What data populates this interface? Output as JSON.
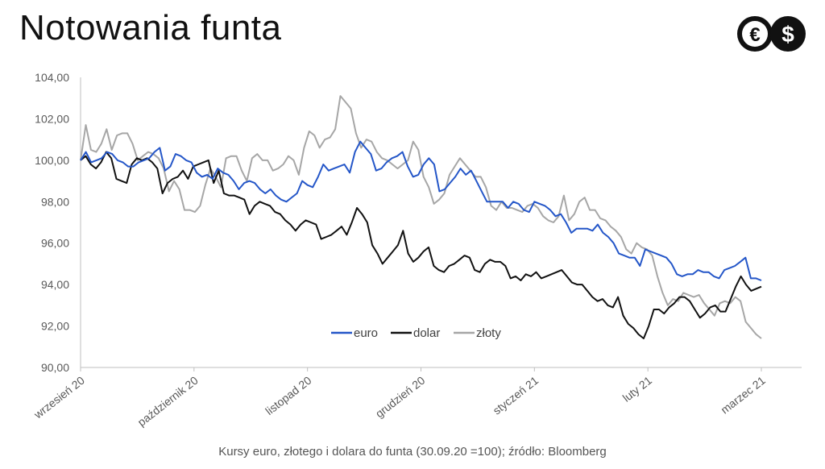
{
  "header": {
    "title": "Notowania funta"
  },
  "logo": {
    "label_left": "€",
    "label_right": "$"
  },
  "footnote": "Kursy euro, złotego i dolara do funta (30.09.20 =100); źródło: Bloomberg",
  "colors": {
    "euro": "#2456c8",
    "dolar": "#111111",
    "zloty": "#a6a6a6"
  },
  "chart_data": {
    "type": "line",
    "title": "Notowania funta",
    "ylim": [
      90,
      104
    ],
    "yticks": [
      "90,00",
      "92,00",
      "94,00",
      "96,00",
      "98,00",
      "100,00",
      "102,00",
      "104,00"
    ],
    "xticks": [
      "wrzesień 20",
      "październik 20",
      "listopad 20",
      "grudzień 20",
      "styczeń 21",
      "luty 21",
      "marzec 21"
    ],
    "legend": "inside-bottom-center",
    "grid": false,
    "series": [
      {
        "name": "euro",
        "color": "#2456c8",
        "values": [
          100.0,
          100.4,
          99.9,
          100.0,
          100.1,
          100.4,
          100.3,
          100.0,
          99.9,
          99.7,
          99.7,
          99.9,
          100.0,
          100.1,
          100.4,
          100.6,
          99.5,
          99.7,
          100.3,
          100.2,
          100.0,
          99.9,
          99.4,
          99.2,
          99.3,
          99.1,
          99.6,
          99.4,
          99.3,
          99.0,
          98.6,
          98.9,
          99.0,
          98.9,
          98.6,
          98.4,
          98.6,
          98.3,
          98.1,
          98.0,
          98.2,
          98.4,
          99.0,
          98.8,
          98.7,
          99.2,
          99.8,
          99.5,
          99.6,
          99.7,
          99.8,
          99.4,
          100.4,
          100.9,
          100.6,
          100.3,
          99.5,
          99.6,
          99.9,
          100.1,
          100.2,
          100.4,
          99.7,
          99.2,
          99.3,
          99.8,
          100.1,
          99.8,
          98.5,
          98.6,
          98.9,
          99.2,
          99.6,
          99.3,
          99.5,
          99.0,
          98.5,
          98.0,
          98.0,
          98.0,
          98.0,
          97.7,
          98.0,
          97.9,
          97.6,
          97.5,
          98.0,
          97.9,
          97.8,
          97.6,
          97.3,
          97.4,
          97.0,
          96.5,
          96.7,
          96.7,
          96.7,
          96.6,
          96.9,
          96.5,
          96.3,
          96.0,
          95.5,
          95.4,
          95.3,
          95.3,
          94.9,
          95.7,
          95.6,
          95.5,
          95.4,
          95.3,
          95.0,
          94.5,
          94.4,
          94.5,
          94.5,
          94.7,
          94.6,
          94.6,
          94.4,
          94.3,
          94.7,
          94.8,
          94.9,
          95.1,
          95.3,
          94.3,
          94.3,
          94.2
        ]
      },
      {
        "name": "dolar",
        "color": "#111111",
        "values": [
          100.0,
          100.2,
          99.8,
          99.6,
          99.9,
          100.4,
          100.1,
          99.1,
          99.0,
          98.9,
          99.8,
          100.1,
          100.0,
          100.1,
          99.9,
          99.6,
          98.4,
          98.9,
          99.1,
          99.2,
          99.5,
          99.1,
          99.7,
          99.8,
          99.9,
          100.0,
          98.9,
          99.5,
          98.4,
          98.3,
          98.3,
          98.2,
          98.1,
          97.4,
          97.8,
          98.0,
          97.9,
          97.8,
          97.5,
          97.4,
          97.1,
          96.9,
          96.6,
          96.9,
          97.1,
          97.0,
          96.9,
          96.2,
          96.3,
          96.4,
          96.6,
          96.8,
          96.4,
          97.0,
          97.7,
          97.4,
          97.0,
          95.9,
          95.5,
          95.0,
          95.3,
          95.6,
          95.9,
          96.6,
          95.5,
          95.1,
          95.3,
          95.6,
          95.8,
          94.9,
          94.7,
          94.6,
          94.9,
          95.0,
          95.2,
          95.4,
          95.3,
          94.7,
          94.6,
          95.0,
          95.2,
          95.1,
          95.1,
          94.9,
          94.3,
          94.4,
          94.2,
          94.5,
          94.4,
          94.6,
          94.3,
          94.4,
          94.5,
          94.6,
          94.7,
          94.4,
          94.1,
          94.0,
          94.0,
          93.7,
          93.4,
          93.2,
          93.3,
          93.0,
          92.9,
          93.4,
          92.5,
          92.1,
          91.9,
          91.6,
          91.4,
          92.0,
          92.8,
          92.8,
          92.6,
          92.9,
          93.1,
          93.4,
          93.4,
          93.2,
          92.8,
          92.4,
          92.6,
          92.9,
          93.0,
          92.7,
          92.7,
          93.3,
          93.9,
          94.4,
          94.0,
          93.7,
          93.8,
          93.9
        ]
      },
      {
        "name": "złoty",
        "color": "#a6a6a6",
        "values": [
          100.0,
          101.7,
          100.5,
          100.4,
          100.8,
          101.5,
          100.5,
          101.2,
          101.3,
          101.3,
          100.8,
          100.0,
          100.2,
          100.4,
          100.3,
          100.1,
          99.6,
          98.5,
          99.0,
          98.6,
          97.6,
          97.6,
          97.5,
          97.8,
          98.8,
          99.6,
          99.2,
          98.7,
          100.1,
          100.2,
          100.2,
          99.5,
          99.0,
          100.1,
          100.3,
          100.0,
          100.0,
          99.5,
          99.6,
          99.8,
          100.2,
          100.0,
          99.3,
          100.6,
          101.4,
          101.2,
          100.6,
          101.0,
          101.1,
          101.5,
          103.1,
          102.8,
          102.5,
          101.3,
          100.6,
          101.0,
          100.9,
          100.4,
          100.1,
          100.0,
          99.8,
          99.6,
          99.8,
          100.0,
          100.9,
          100.5,
          99.2,
          98.7,
          97.9,
          98.1,
          98.4,
          99.3,
          99.7,
          100.1,
          99.8,
          99.5,
          99.2,
          99.2,
          98.7,
          97.8,
          97.6,
          98.0,
          97.7,
          97.7,
          97.6,
          97.5,
          97.8,
          97.9,
          97.7,
          97.3,
          97.1,
          97.0,
          97.3,
          98.3,
          97.1,
          97.4,
          98.0,
          98.2,
          97.6,
          97.6,
          97.2,
          97.1,
          96.8,
          96.6,
          96.3,
          95.7,
          95.5,
          96.0,
          95.8,
          95.7,
          95.4,
          94.4,
          93.6,
          93.0,
          93.3,
          93.2,
          93.6,
          93.5,
          93.4,
          93.5,
          93.1,
          92.8,
          92.5,
          93.1,
          93.2,
          93.1,
          93.4,
          93.2,
          92.2,
          91.9,
          91.6,
          91.4
        ]
      }
    ]
  }
}
